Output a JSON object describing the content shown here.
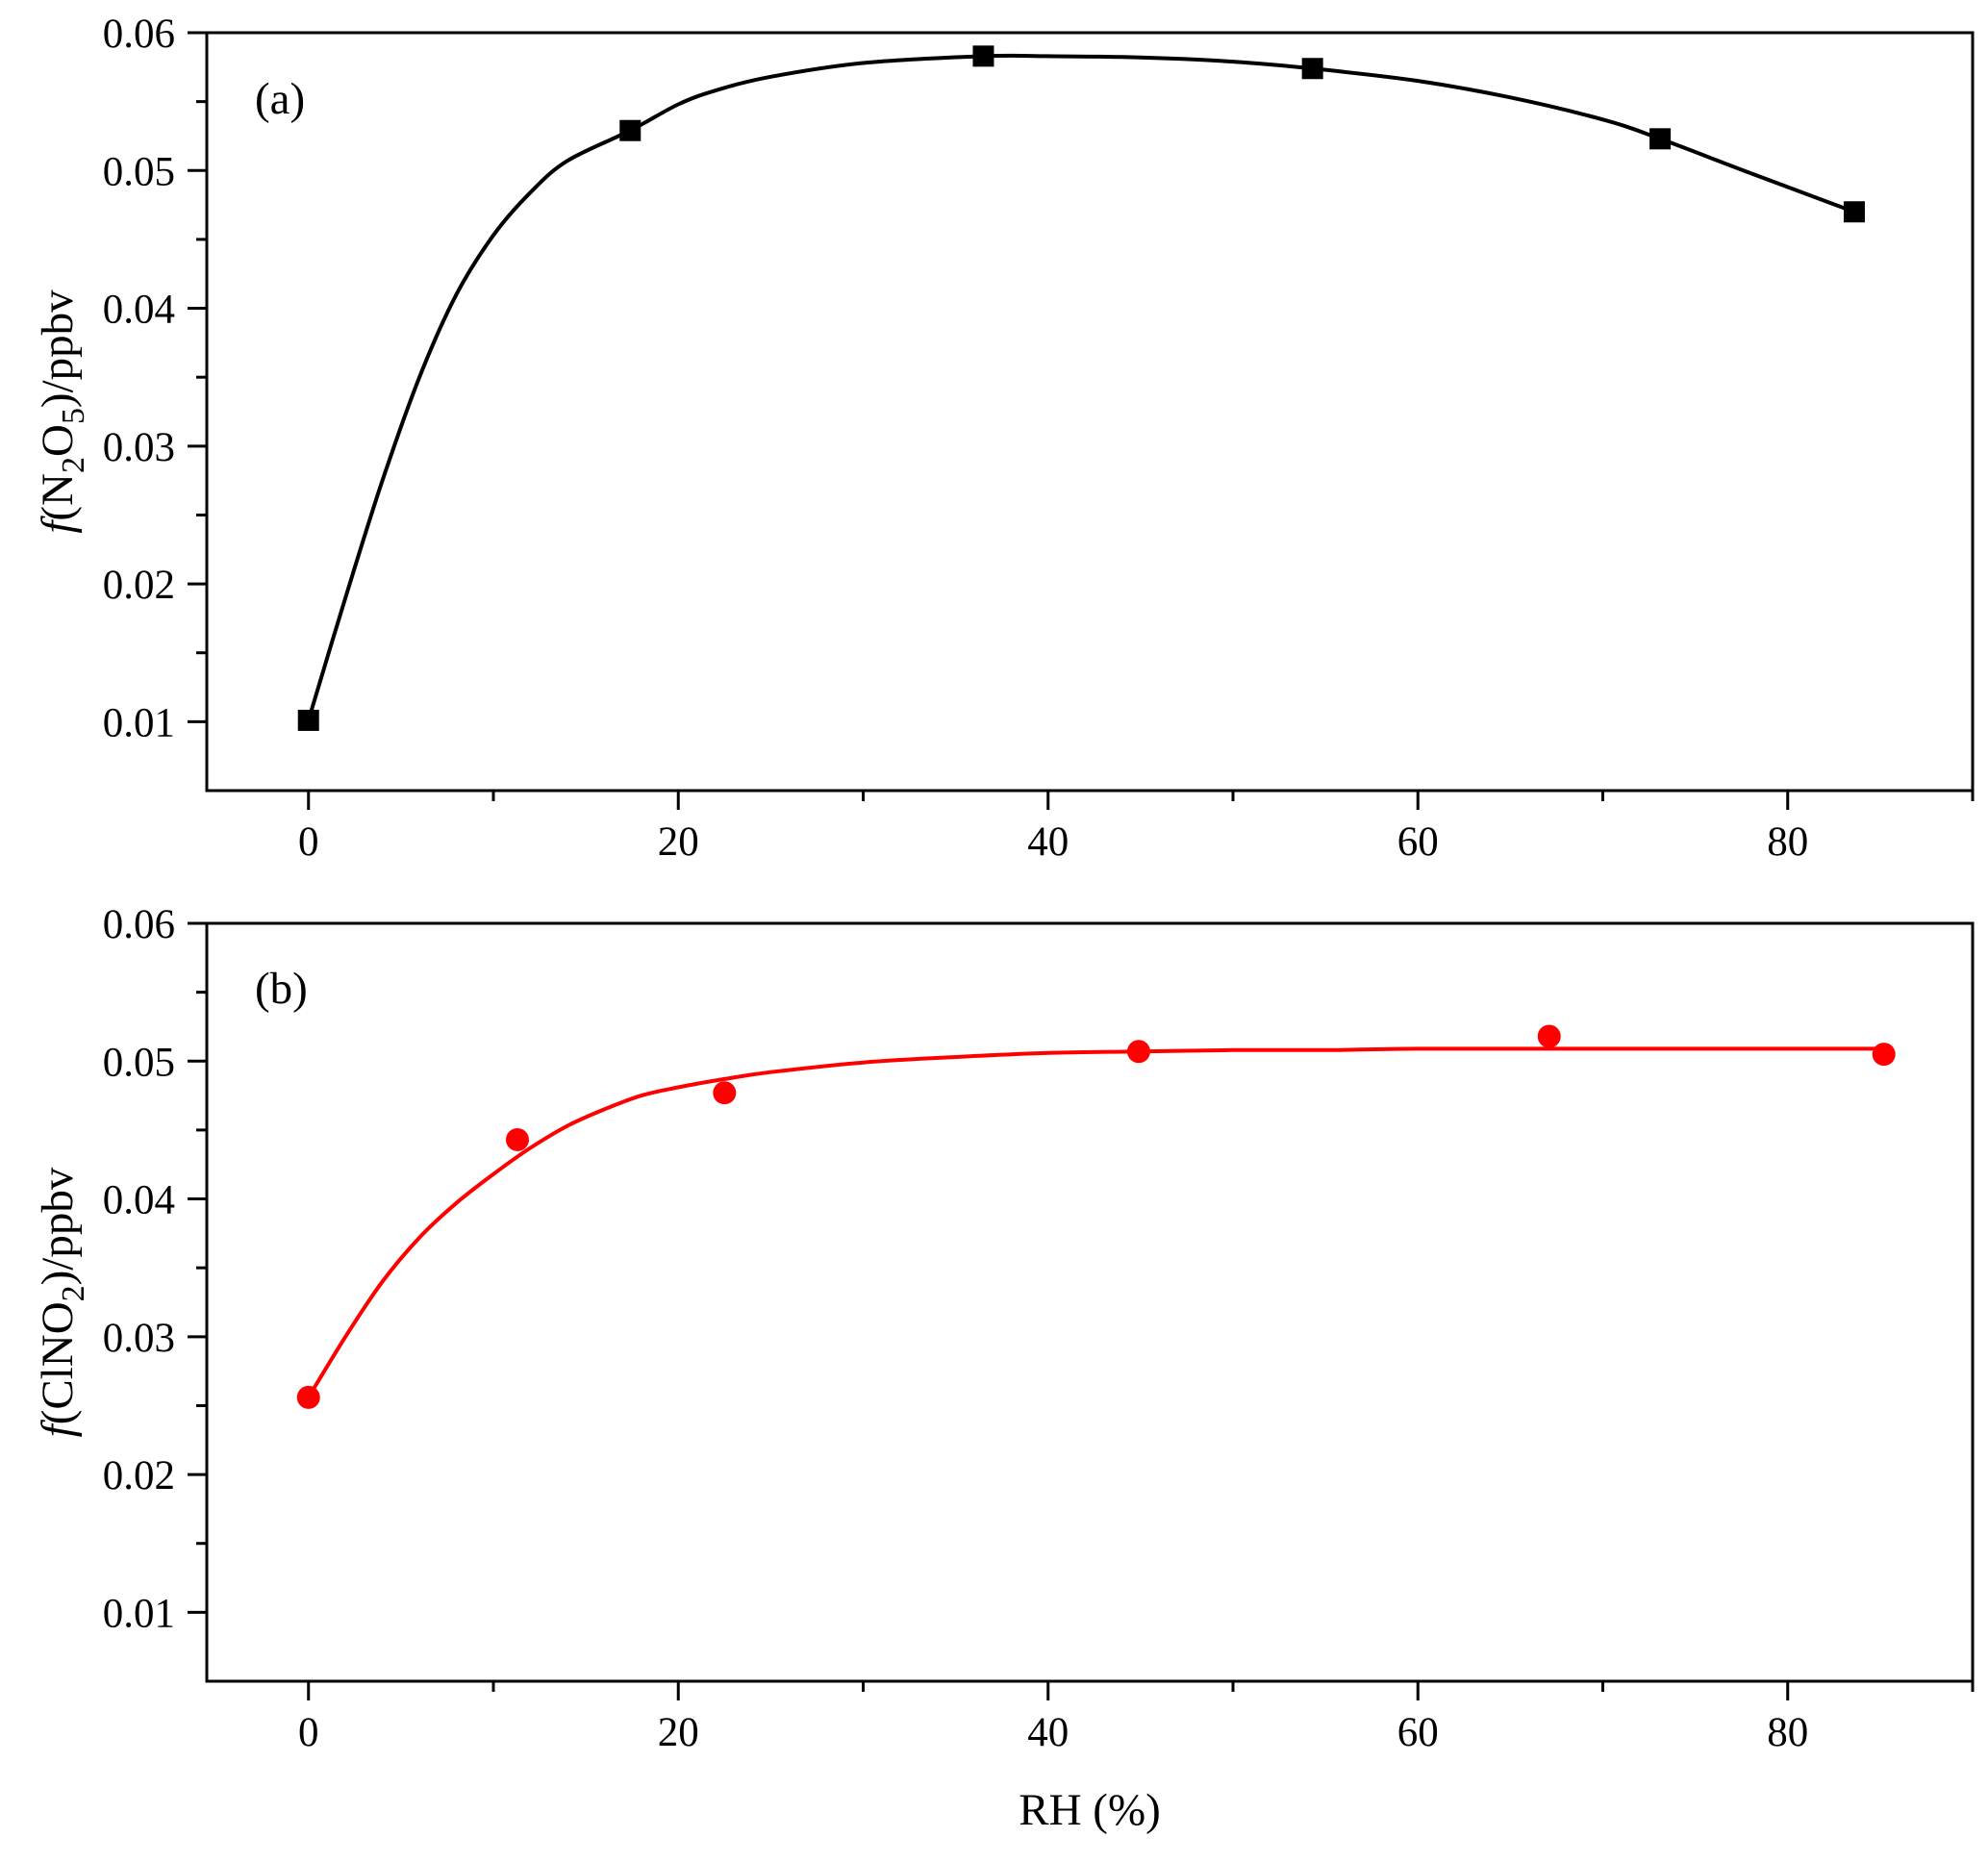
{
  "chart_data": [
    {
      "type": "scatter",
      "panel_label": "(a)",
      "ylabel_prefix": "f",
      "ylabel_parts": [
        {
          "text": "(N",
          "sub": false
        },
        {
          "text": "2",
          "sub": true
        },
        {
          "text": "O",
          "sub": false
        },
        {
          "text": "5",
          "sub": true
        },
        {
          "text": ")/ppbv",
          "sub": false
        }
      ],
      "xlabel": "",
      "xlim": [
        -5.5,
        90
      ],
      "ylim": [
        0.005,
        0.06
      ],
      "xticks": [
        0,
        20,
        40,
        60,
        80
      ],
      "xtick_labels": [
        "0",
        "20",
        "40",
        "60",
        "80"
      ],
      "yticks": [
        0.01,
        0.02,
        0.03,
        0.04,
        0.05,
        0.06
      ],
      "ytick_labels": [
        "0.01",
        "0.02",
        "0.03",
        "0.04",
        "0.05",
        "0.06"
      ],
      "series": [
        {
          "marker": "square",
          "color": "#000000",
          "x": [
            0,
            17.4,
            36.5,
            54.3,
            73.1,
            83.6
          ],
          "y": [
            0.0101,
            0.0529,
            0.0583,
            0.0574,
            0.0523,
            0.047
          ],
          "fit_x": [
            0,
            2,
            4,
            6,
            8,
            10,
            12,
            14,
            17.4,
            20,
            22,
            25,
            30,
            36.5,
            40,
            45,
            50,
            54.3,
            60,
            65,
            70,
            73.1,
            78,
            83.6
          ],
          "fit_y": [
            0.0101,
            0.019,
            0.0275,
            0.035,
            0.041,
            0.0453,
            0.0484,
            0.0507,
            0.0529,
            0.0548,
            0.0558,
            0.0568,
            0.0578,
            0.0583,
            0.0583,
            0.0582,
            0.0579,
            0.0574,
            0.0565,
            0.0553,
            0.0537,
            0.0523,
            0.0498,
            0.047
          ]
        }
      ]
    },
    {
      "type": "scatter",
      "panel_label": "(b)",
      "ylabel_prefix": "f",
      "ylabel_parts": [
        {
          "text": "(ClNO",
          "sub": false
        },
        {
          "text": "2",
          "sub": true
        },
        {
          "text": ")/ppbv",
          "sub": false
        }
      ],
      "xlabel": "RH (%)",
      "xlim": [
        -5.5,
        90
      ],
      "ylim": [
        0.005,
        0.06
      ],
      "xticks": [
        0,
        20,
        40,
        60,
        80
      ],
      "xtick_labels": [
        "0",
        "20",
        "40",
        "60",
        "80"
      ],
      "yticks": [
        0.01,
        0.02,
        0.03,
        0.04,
        0.05,
        0.06
      ],
      "ytick_labels": [
        "0.01",
        "0.02",
        "0.03",
        "0.04",
        "0.05",
        "0.06"
      ],
      "series": [
        {
          "marker": "circle",
          "color": "#ff0000",
          "x": [
            0,
            11.3,
            22.5,
            44.9,
            67.1,
            85.2
          ],
          "y": [
            0.0256,
            0.0443,
            0.0477,
            0.0507,
            0.0518,
            0.0505
          ],
          "fit_x": [
            0,
            2,
            4,
            6,
            8,
            10,
            12,
            14,
            16,
            18,
            20,
            22.5,
            25,
            30,
            35,
            40,
            45,
            50,
            55,
            60,
            67,
            75,
            85.2
          ],
          "fit_y": [
            0.0256,
            0.03,
            0.034,
            0.0372,
            0.0397,
            0.0418,
            0.0437,
            0.0453,
            0.0465,
            0.0475,
            0.0481,
            0.0487,
            0.0492,
            0.0499,
            0.0503,
            0.0506,
            0.0507,
            0.0508,
            0.0508,
            0.0509,
            0.0509,
            0.0509,
            0.0509
          ]
        }
      ]
    }
  ]
}
